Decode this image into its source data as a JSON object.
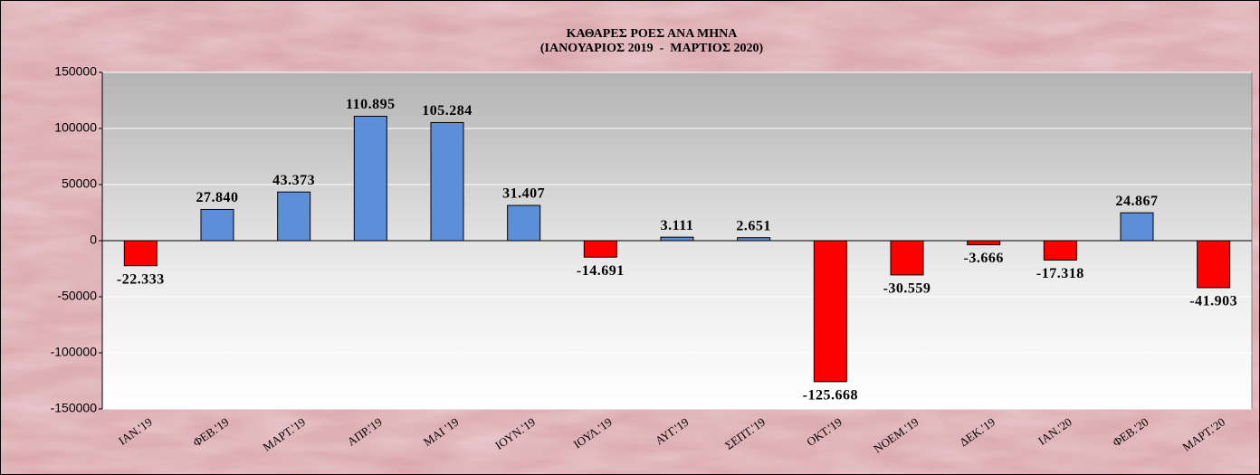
{
  "chart_data": {
    "type": "bar",
    "title": "ΚΑΘΑΡΕΣ ΡΟΕΣ ΑΝΑ ΜΗΝΑ",
    "subtitle": "(ΙΑΝΟΥΑΡΙΟΣ 2019  -  ΜΑΡΤΙΟΣ 2020)",
    "categories": [
      "ΙΑΝ.'19",
      "ΦΕΒ.'19",
      "ΜΑΡΤ.'19",
      "ΑΠΡ.'19",
      "ΜΑΙ '19",
      "ΙΟΥΝ.'19",
      "ΙΟΥΛ.'19",
      "ΑΥΓ.'19",
      "ΣΕΠΤ.'19",
      "ΟΚΤ.'19",
      "ΝΟΕΜ.'19",
      "ΔΕΚ.'19",
      "ΙΑΝ.'20",
      "ΦΕΒ.'20",
      "ΜΑΡΤ.'20"
    ],
    "values": [
      -22333,
      27840,
      43373,
      110895,
      105284,
      31407,
      -14691,
      3111,
      2651,
      -125668,
      -30559,
      -3666,
      -17318,
      24867,
      -41903
    ],
    "value_labels": [
      "-22.333",
      "27.840",
      "43.373",
      "110.895",
      "105.284",
      "31.407",
      "-14.691",
      "3.111",
      "2.651",
      "-125.668",
      "-30.559",
      "-3.666",
      "-17.318",
      "24.867",
      "-41.903"
    ],
    "positive_color": "#5b8fd8",
    "negative_color": "#ff0000",
    "ylim": [
      -150000,
      150000
    ],
    "yticks": [
      -150000,
      -100000,
      -50000,
      0,
      50000,
      100000,
      150000
    ],
    "grid": true
  }
}
